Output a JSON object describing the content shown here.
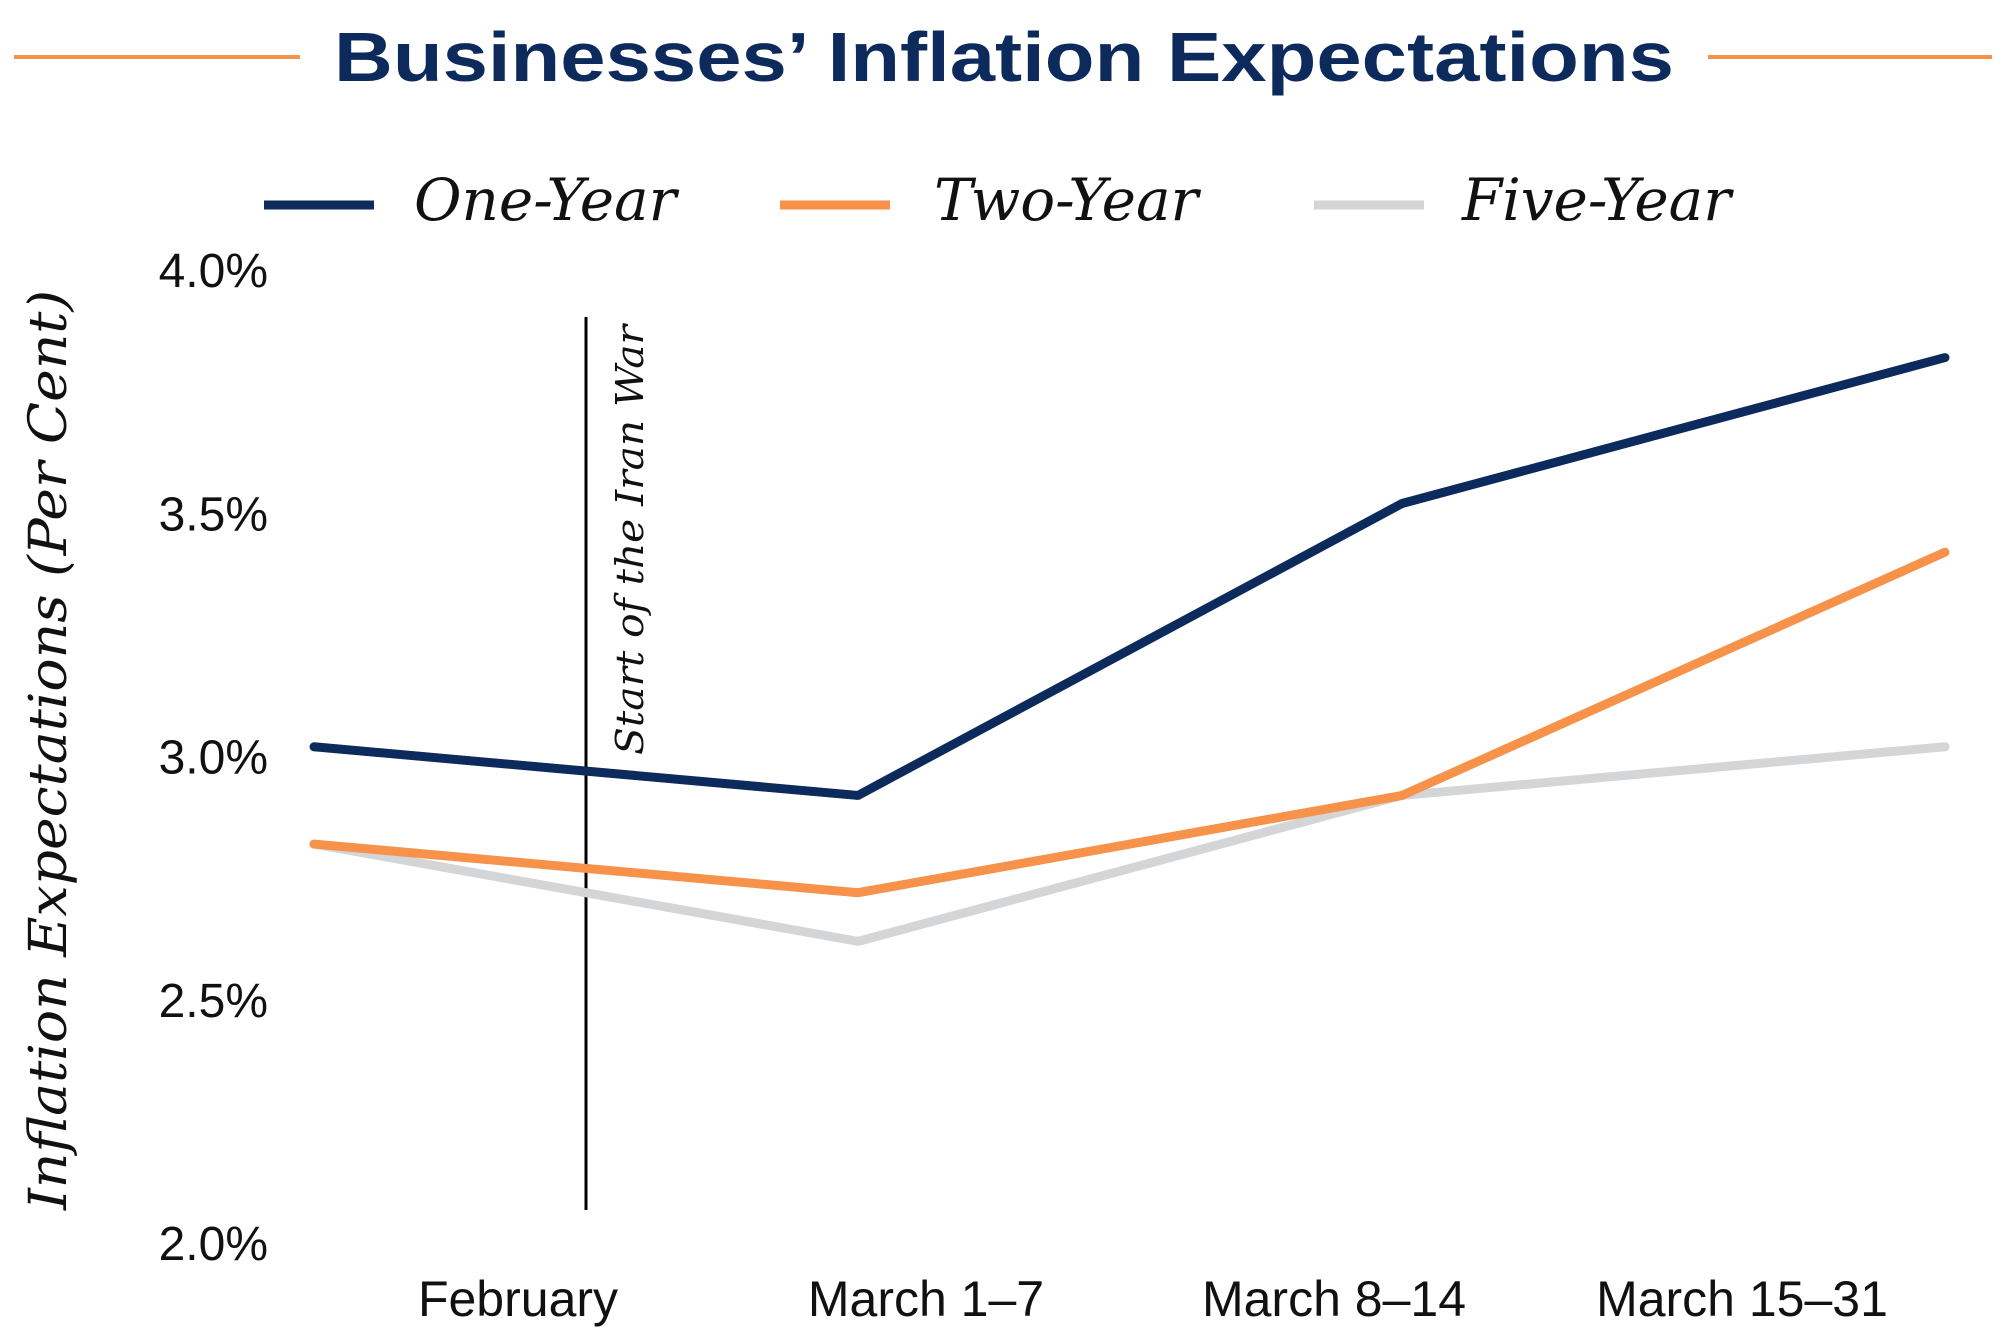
{
  "chart_data": {
    "type": "line",
    "title": "Businesses’ Inflation Expectations",
    "xlabel": "",
    "ylabel": "Inflation Expectations (Per Cent)",
    "categories": [
      "February",
      "March 1–7",
      "March 8–14",
      "March 15–31"
    ],
    "yticks": [
      "4.0%",
      "3.5%",
      "3.0%",
      "2.5%",
      "2.0%"
    ],
    "ytick_values": [
      4.0,
      3.5,
      3.0,
      2.5,
      2.0
    ],
    "ylim": [
      2.0,
      4.0
    ],
    "grid": false,
    "legend_position": "top",
    "series": [
      {
        "name": "One-Year",
        "color": "#0d2a5c",
        "values": [
          3.02,
          2.92,
          3.52,
          3.82
        ]
      },
      {
        "name": "Two-Year",
        "color": "#f7924a",
        "values": [
          2.82,
          2.72,
          2.92,
          3.42
        ]
      },
      {
        "name": "Five-Year",
        "color": "#d3d5d7",
        "values": [
          2.82,
          2.62,
          2.92,
          3.02
        ]
      }
    ],
    "annotation": {
      "text": "Start of the Iran War",
      "between_categories": [
        0,
        1
      ],
      "position": 0.5
    }
  },
  "colors": {
    "title": "#0d2a5c",
    "rule": "#f7924a"
  }
}
